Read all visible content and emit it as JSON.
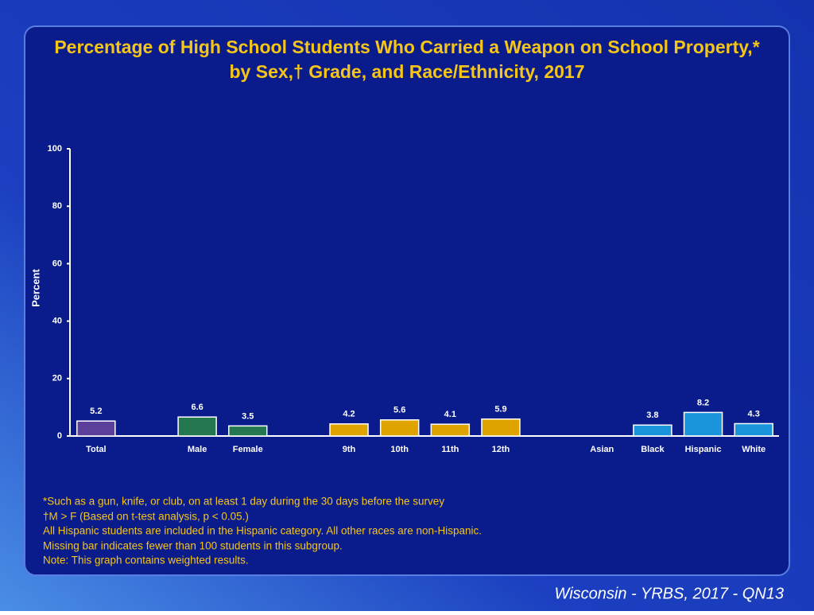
{
  "chart_data": {
    "type": "bar",
    "title": "Percentage of High School Students Who Carried a Weapon on School Property,* by Sex,† Grade, and Race/Ethnicity, 2017",
    "y_label": "Percent",
    "categories": [
      "Total",
      null,
      "Male",
      "Female",
      null,
      "9th",
      "10th",
      "11th",
      "12th",
      null,
      "Asian",
      "Black",
      "Hispanic",
      "White"
    ],
    "values": [
      5.2,
      null,
      6.6,
      3.5,
      null,
      4.2,
      5.6,
      4.1,
      5.9,
      null,
      null,
      3.8,
      8.2,
      4.3
    ],
    "colors": [
      "#5b3f9a",
      null,
      "#23784f",
      "#23784f",
      null,
      "#e0a400",
      "#e0a400",
      "#e0a400",
      "#e0a400",
      null,
      "#1a95dc",
      "#1a95dc",
      "#1a95dc",
      "#1a95dc"
    ],
    "ylim": [
      0,
      100
    ],
    "yticks": [
      0,
      20,
      40,
      60,
      80,
      100
    ],
    "notes": [
      "*Such as a gun, knife, or club, on at least 1 day during the 30 days before the survey",
      "†M > F (Based on t-test analysis, p < 0.05.)",
      "All Hispanic students are included in the Hispanic category.  All other races are non-Hispanic.",
      "Missing bar indicates fewer than 100 students in this subgroup.",
      "Note: This graph contains weighted results."
    ],
    "footer": "Wisconsin - YRBS, 2017 - QN13"
  }
}
